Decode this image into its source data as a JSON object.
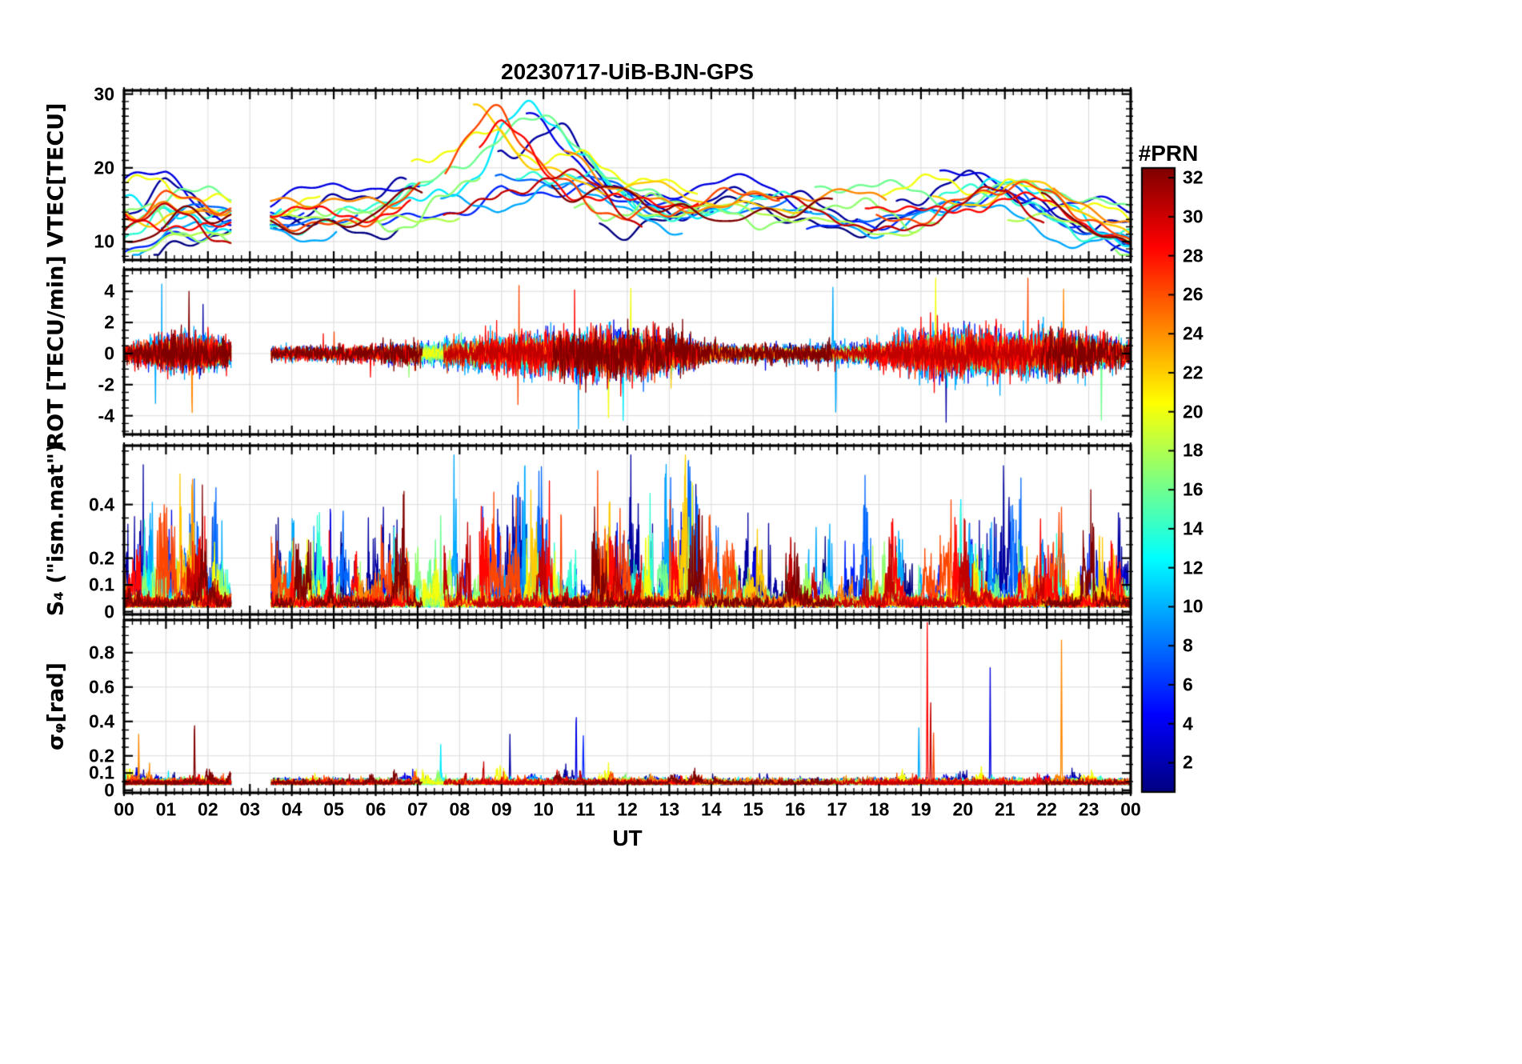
{
  "title": "20230717-UiB-BJN-GPS",
  "xlabel": "UT",
  "x_tick_labels": [
    "00",
    "01",
    "02",
    "03",
    "04",
    "05",
    "06",
    "07",
    "08",
    "09",
    "10",
    "11",
    "12",
    "13",
    "14",
    "15",
    "16",
    "17",
    "18",
    "19",
    "20",
    "21",
    "22",
    "23",
    "00"
  ],
  "x_range_hours": [
    0,
    24
  ],
  "data_gap_ut_hours": [
    2.55,
    3.5
  ],
  "prns_plotted": [
    1,
    2,
    4,
    6,
    8,
    10,
    12,
    14,
    16,
    17,
    18,
    20,
    22,
    24,
    26,
    28,
    30,
    32
  ],
  "envelope_hours": [
    0,
    1,
    2,
    3,
    4,
    5,
    6,
    7,
    8,
    9,
    10,
    11,
    12,
    13,
    14,
    15,
    16,
    17,
    18,
    19,
    20,
    21,
    22,
    23,
    24
  ],
  "colorbar": {
    "label": "#PRN",
    "colormap": "jet",
    "range": [
      0.5,
      32.5
    ],
    "ticks": [
      2,
      4,
      6,
      8,
      10,
      12,
      14,
      16,
      18,
      20,
      22,
      24,
      26,
      28,
      30,
      32
    ]
  },
  "chart_data": [
    {
      "type": "line",
      "panel": "vtec",
      "ylabel": "VTEC[TECU]",
      "yticks": [
        10,
        20,
        30
      ],
      "ylim": [
        7.5,
        30.5
      ],
      "hourly_mean": [
        13,
        13.5,
        13,
        13,
        13.5,
        14,
        14.5,
        16,
        18.5,
        20.5,
        19.5,
        17.5,
        15.5,
        14.5,
        15,
        15,
        14.5,
        14.5,
        14.5,
        15,
        15.5,
        16,
        14.5,
        12.5,
        10.5
      ],
      "hourly_spread": [
        4,
        4.5,
        4,
        2,
        2.2,
        2.5,
        2.5,
        3.5,
        4,
        4.5,
        4.5,
        4,
        3.5,
        2.5,
        2,
        2,
        2,
        2,
        2.5,
        3,
        3,
        3.5,
        3,
        2.5,
        2
      ],
      "notable_peaks": [
        {
          "prn": 12,
          "hour": 9.65,
          "value": 27.3
        },
        {
          "prn": 22,
          "hour": 8.35,
          "value": 25.5
        },
        {
          "prn": 26,
          "hour": 8.85,
          "value": 25.0
        },
        {
          "prn": 20,
          "hour": 8.05,
          "value": 24.3
        },
        {
          "prn": 28,
          "hour": 9.05,
          "value": 24.8
        },
        {
          "prn": 2,
          "hour": 10.1,
          "value": 23.5
        }
      ]
    },
    {
      "type": "line",
      "panel": "rot",
      "ylabel": "ROT [TECU/min]",
      "yticks": [
        -4,
        -2,
        0,
        2,
        4
      ],
      "ylim": [
        -5.2,
        5.4
      ],
      "hourly_amplitude": [
        0.45,
        1.0,
        1.1,
        0.3,
        0.35,
        0.4,
        0.5,
        0.7,
        0.9,
        1.1,
        1.2,
        1.3,
        1.4,
        1.1,
        0.6,
        0.45,
        0.5,
        0.6,
        0.7,
        1.3,
        1.4,
        1.3,
        1.3,
        1.0,
        0.6
      ],
      "notable_spikes": [
        {
          "prn": 10,
          "hour": 16.9,
          "value": 4.6
        },
        {
          "prn": 10,
          "hour": 16.97,
          "value": -4.5
        },
        {
          "prn": 20,
          "hour": 12.08,
          "value": 4.7
        },
        {
          "prn": 20,
          "hour": 11.55,
          "value": -4.5
        },
        {
          "prn": 24,
          "hour": 1.62,
          "value": -4.4
        },
        {
          "prn": 32,
          "hour": 1.55,
          "value": 4.5
        },
        {
          "prn": 26,
          "hour": 21.55,
          "value": 4.4
        },
        {
          "prn": 16,
          "hour": 23.3,
          "value": -4.6
        },
        {
          "prn": 20,
          "hour": 19.35,
          "value": 4.5
        },
        {
          "prn": 2,
          "hour": 19.6,
          "value": -4.2
        },
        {
          "prn": 12,
          "hour": 11.9,
          "value": -4.7
        },
        {
          "prn": 24,
          "hour": 22.4,
          "value": 4.3
        }
      ]
    },
    {
      "type": "line",
      "panel": "s4",
      "ylabel": "S₄ (\"ism.mat\")",
      "yticks": [
        0,
        0.1,
        0.2,
        0.4
      ],
      "ylim": [
        0,
        0.62
      ],
      "hourly_burst_level": [
        0.18,
        0.35,
        0.28,
        0.1,
        0.3,
        0.38,
        0.22,
        0.32,
        0.35,
        0.3,
        0.35,
        0.3,
        0.25,
        0.42,
        0.3,
        0.18,
        0.22,
        0.28,
        0.3,
        0.25,
        0.3,
        0.25,
        0.28,
        0.25,
        0.15
      ],
      "notable_peaks": [
        {
          "prn": 20,
          "hour": 13.38,
          "value": 0.58
        },
        {
          "prn": 24,
          "hour": 1.63,
          "value": 0.5
        },
        {
          "prn": 26,
          "hour": 13.02,
          "value": 0.42
        },
        {
          "prn": 4,
          "hour": 4.92,
          "value": 0.37
        },
        {
          "prn": 6,
          "hour": 8.55,
          "value": 0.35
        },
        {
          "prn": 2,
          "hour": 9.58,
          "value": 0.3
        },
        {
          "prn": 26,
          "hour": 10.42,
          "value": 0.36
        },
        {
          "prn": 16,
          "hour": 7.55,
          "value": 0.33
        },
        {
          "prn": 12,
          "hour": 19.95,
          "value": 0.37
        },
        {
          "prn": 28,
          "hour": 21.85,
          "value": 0.3
        },
        {
          "prn": 20,
          "hour": 13.55,
          "value": 0.45
        },
        {
          "prn": 10,
          "hour": 16.5,
          "value": 0.28
        }
      ]
    },
    {
      "type": "line",
      "panel": "sigma_phi",
      "ylabel": "σᵩ[rad]",
      "yticks": [
        0,
        0.1,
        0.2,
        0.4,
        0.6,
        0.8
      ],
      "ylim": [
        0,
        0.99
      ],
      "hourly_burst_level": [
        0.12,
        0.15,
        0.1,
        0.05,
        0.05,
        0.05,
        0.06,
        0.12,
        0.12,
        0.15,
        0.12,
        0.15,
        0.1,
        0.08,
        0.06,
        0.05,
        0.05,
        0.05,
        0.06,
        0.1,
        0.1,
        0.08,
        0.12,
        0.08,
        0.08
      ],
      "notable_peaks": [
        {
          "prn": 28,
          "hour": 19.15,
          "value": 0.95
        },
        {
          "prn": 30,
          "hour": 19.23,
          "value": 0.5
        },
        {
          "prn": 4,
          "hour": 20.65,
          "value": 0.67
        },
        {
          "prn": 24,
          "hour": 22.35,
          "value": 0.82
        },
        {
          "prn": 10,
          "hour": 18.95,
          "value": 0.33
        },
        {
          "prn": 4,
          "hour": 10.78,
          "value": 0.42
        },
        {
          "prn": 32,
          "hour": 1.68,
          "value": 0.37
        },
        {
          "prn": 24,
          "hour": 0.35,
          "value": 0.27
        },
        {
          "prn": 2,
          "hour": 9.2,
          "value": 0.28
        },
        {
          "prn": 6,
          "hour": 10.95,
          "value": 0.28
        },
        {
          "prn": 12,
          "hour": 7.55,
          "value": 0.22
        },
        {
          "prn": 26,
          "hour": 19.3,
          "value": 0.3
        }
      ]
    }
  ]
}
